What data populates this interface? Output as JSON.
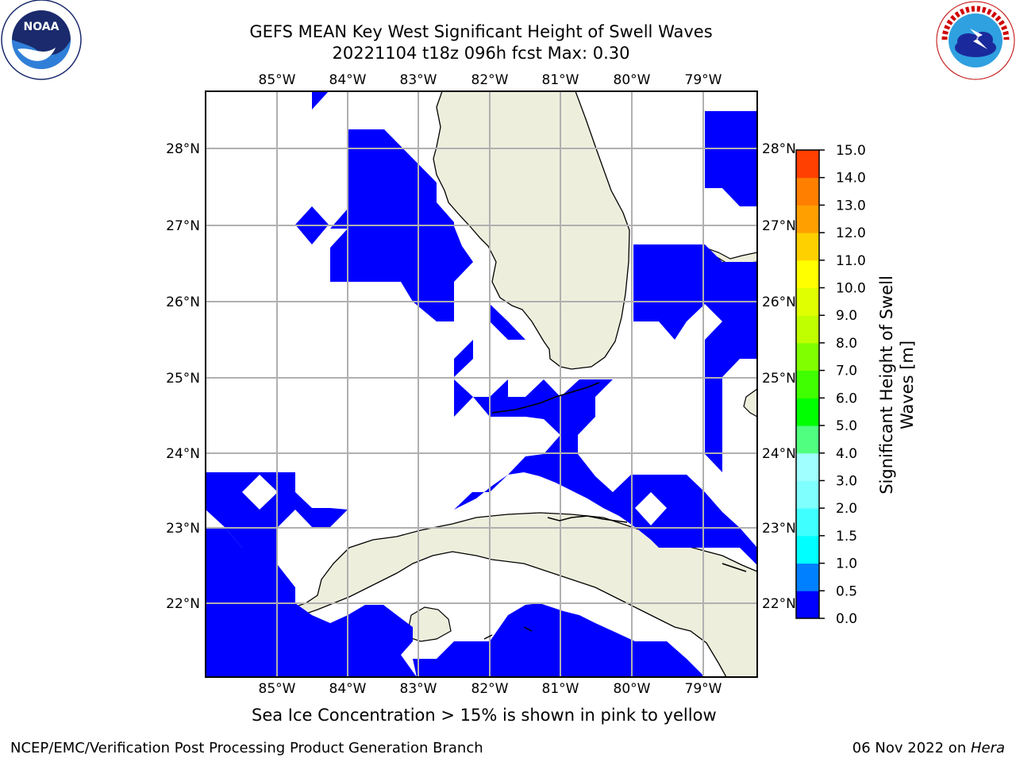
{
  "header": {
    "title_line1": "GEFS MEAN Key West Significant Height of Swell Waves",
    "title_line2": "20221104 t18z 096h fcst   Max: 0.30"
  },
  "logos": {
    "left": {
      "icon": "noaa-logo",
      "text": "NOAA",
      "ring_text": "NATIONAL OCEANIC AND ATMOSPHERIC ADMINISTRATION · U.S. DEPARTMENT OF COMMERCE"
    },
    "right": {
      "icon": "nws-logo",
      "ring_text": "NATIONAL WEATHER SERVICE"
    }
  },
  "map": {
    "lon_labels": [
      "85°W",
      "84°W",
      "83°W",
      "82°W",
      "81°W",
      "80°W",
      "79°W"
    ],
    "lat_labels": [
      "28°N",
      "27°N",
      "26°N",
      "25°N",
      "24°N",
      "23°N",
      "22°N"
    ],
    "land_color": "#eeeedd",
    "ocean_color": "#ffffff",
    "swell_color": "#0000ff",
    "gridline_color": "#b0b0b0"
  },
  "colorbar": {
    "label_line1": "Significant Height of Swell",
    "label_line2": "Waves [m]",
    "ticks": [
      "0.0",
      "0.5",
      "1.0",
      "1.5",
      "2.0",
      "3.0",
      "4.0",
      "5.0",
      "6.0",
      "7.0",
      "8.0",
      "9.0",
      "10.0",
      "11.0",
      "12.0",
      "13.0",
      "14.0",
      "15.0"
    ],
    "colors": [
      "#0000ff",
      "#0080ff",
      "#00ffff",
      "#40ffff",
      "#80ffff",
      "#a0ffff",
      "#50ff80",
      "#00ff00",
      "#40ff00",
      "#80ff00",
      "#c0ff00",
      "#e0ff00",
      "#ffff00",
      "#ffd000",
      "#ffa000",
      "#ff8000",
      "#ff4000",
      "#ff0000"
    ]
  },
  "caption": "Sea Ice Concentration > 15% is shown in pink to yellow",
  "footer": {
    "left": "NCEP/EMC/Verification Post Processing Product Generation Branch",
    "right_prefix": "06 Nov 2022 on ",
    "right_host": "Hera"
  }
}
